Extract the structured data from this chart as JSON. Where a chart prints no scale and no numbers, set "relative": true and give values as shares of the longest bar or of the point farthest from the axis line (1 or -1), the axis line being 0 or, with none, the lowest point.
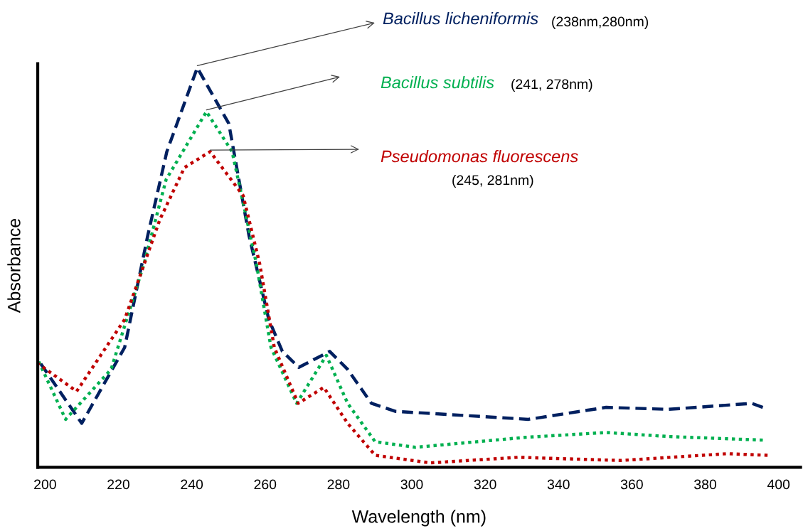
{
  "chart_data": {
    "type": "line",
    "relative": true,
    "xlabel": "Wavelength (nm)",
    "ylabel": "Absorbance",
    "xlim": [
      198,
      406
    ],
    "xticks": [
      200,
      220,
      240,
      260,
      280,
      300,
      320,
      340,
      360,
      380,
      400
    ],
    "grid": false,
    "legend": false,
    "marker": "none",
    "annotations": [
      "(238nm,280nm)",
      "(241, 278nm)",
      "(245, 281nm)"
    ],
    "series": [
      {
        "name": "Bacillus licheniformis",
        "color": "#002060",
        "line_style": "dashed",
        "x": [
          198,
          210,
          221.7,
          228,
          233.2,
          241.5,
          250.1,
          255.6,
          261,
          264.7,
          269.2,
          277.6,
          282.5,
          289,
          295.5,
          331.8,
          353,
          370,
          392.7,
          395.7
        ],
        "values": [
          0.27,
          0.11,
          0.3,
          0.58,
          0.79,
          1.0,
          0.86,
          0.58,
          0.37,
          0.29,
          0.25,
          0.29,
          0.245,
          0.16,
          0.14,
          0.12,
          0.15,
          0.145,
          0.16,
          0.15
        ]
      },
      {
        "name": "Bacillus subtilis",
        "color": "#00b050",
        "line_style": "dotted",
        "x": [
          198,
          205.6,
          218,
          227,
          233,
          244,
          251,
          257.6,
          261.6,
          268.6,
          276.7,
          282.5,
          290,
          301,
          331,
          353,
          370,
          395.7
        ],
        "values": [
          0.27,
          0.12,
          0.245,
          0.51,
          0.72,
          0.89,
          0.79,
          0.51,
          0.3,
          0.16,
          0.28,
          0.16,
          0.064,
          0.05,
          0.075,
          0.087,
          0.077,
          0.068
        ]
      },
      {
        "name": "Pseudomonas fluorescens",
        "color": "#c00000",
        "line_style": "dotted",
        "x": [
          198,
          208.6,
          221.7,
          231.3,
          238,
          245,
          254,
          258.5,
          262.5,
          269,
          276,
          282.5,
          290,
          305,
          329,
          357,
          386,
          397
        ],
        "values": [
          0.26,
          0.19,
          0.37,
          0.62,
          0.75,
          0.79,
          0.68,
          0.51,
          0.3,
          0.16,
          0.2,
          0.11,
          0.03,
          0.011,
          0.025,
          0.017,
          0.034,
          0.03
        ]
      }
    ]
  }
}
